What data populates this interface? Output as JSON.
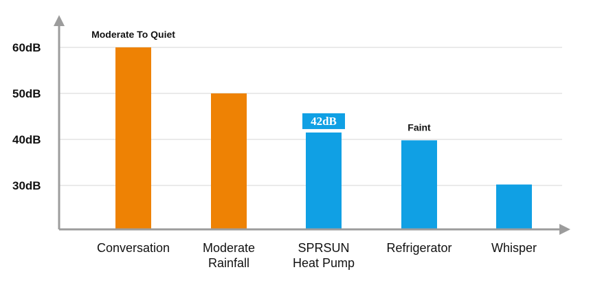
{
  "chart_data": {
    "type": "bar",
    "categories": [
      [
        "Conversation"
      ],
      [
        "Moderate",
        "Rainfall"
      ],
      [
        "SPRSUN",
        "Heat Pump"
      ],
      [
        "Refrigerator"
      ],
      [
        "Whisper"
      ]
    ],
    "values": [
      60,
      50,
      41.5,
      39.8,
      30.2
    ],
    "bar_colors": [
      "#ee8204",
      "#ee8204",
      "#10a0e4",
      "#10a0e4",
      "#10a0e4"
    ],
    "ytick_values": [
      30,
      40,
      50,
      60
    ],
    "ytick_labels": [
      "30dB",
      "40dB",
      "50dB",
      "60dB"
    ],
    "annotations": [
      {
        "text": "Moderate To Quiet",
        "category_index": 0,
        "value": 60
      },
      {
        "text": "Faint",
        "category_index": 3,
        "value": 39.8
      }
    ],
    "data_labels": [
      {
        "text": "42dB",
        "category_index": 2,
        "value": 41.5,
        "color": "#10a0e4"
      }
    ],
    "axis_color": "#9c9c9c",
    "grid_color": "#d6d6d6",
    "grid": true,
    "ylim": [
      22,
      67
    ]
  }
}
